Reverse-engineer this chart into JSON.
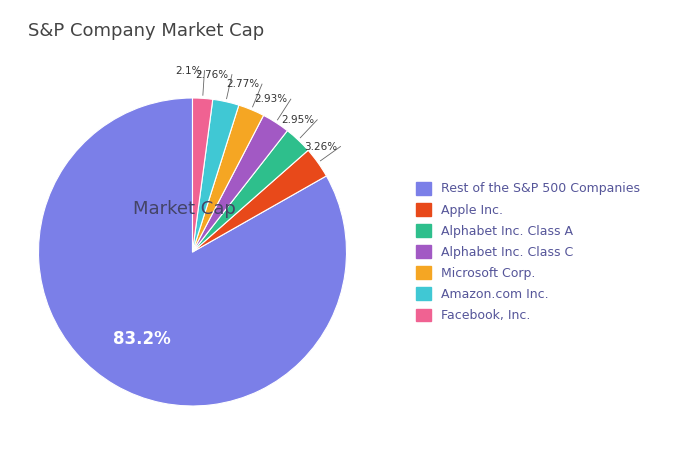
{
  "title": "S&P Company Market Cap",
  "labels": [
    "Rest of the S&P 500 Companies",
    "Apple Inc.",
    "Alphabet Inc. Class A",
    "Alphabet Inc. Class C",
    "Microsoft Corp.",
    "Amazon.com Inc.",
    "Facebook, Inc."
  ],
  "values": [
    83.2,
    3.26,
    2.95,
    2.93,
    2.77,
    2.76,
    2.1
  ],
  "pct_labels": [
    "",
    "3.26%",
    "2.95%",
    "2.93%",
    "2.77%",
    "2.76%",
    "2.1%"
  ],
  "colors": [
    "#7B7FE8",
    "#E8491A",
    "#2EBF8C",
    "#A259C4",
    "#F5A623",
    "#40C8D4",
    "#F06292"
  ],
  "center_label": "Market Cap",
  "large_pct_label": "83.2%",
  "startangle": 90,
  "background_color": "#ffffff",
  "title_fontsize": 13,
  "title_color": "#444444",
  "legend_fontsize": 9,
  "legend_text_color": "#555599"
}
